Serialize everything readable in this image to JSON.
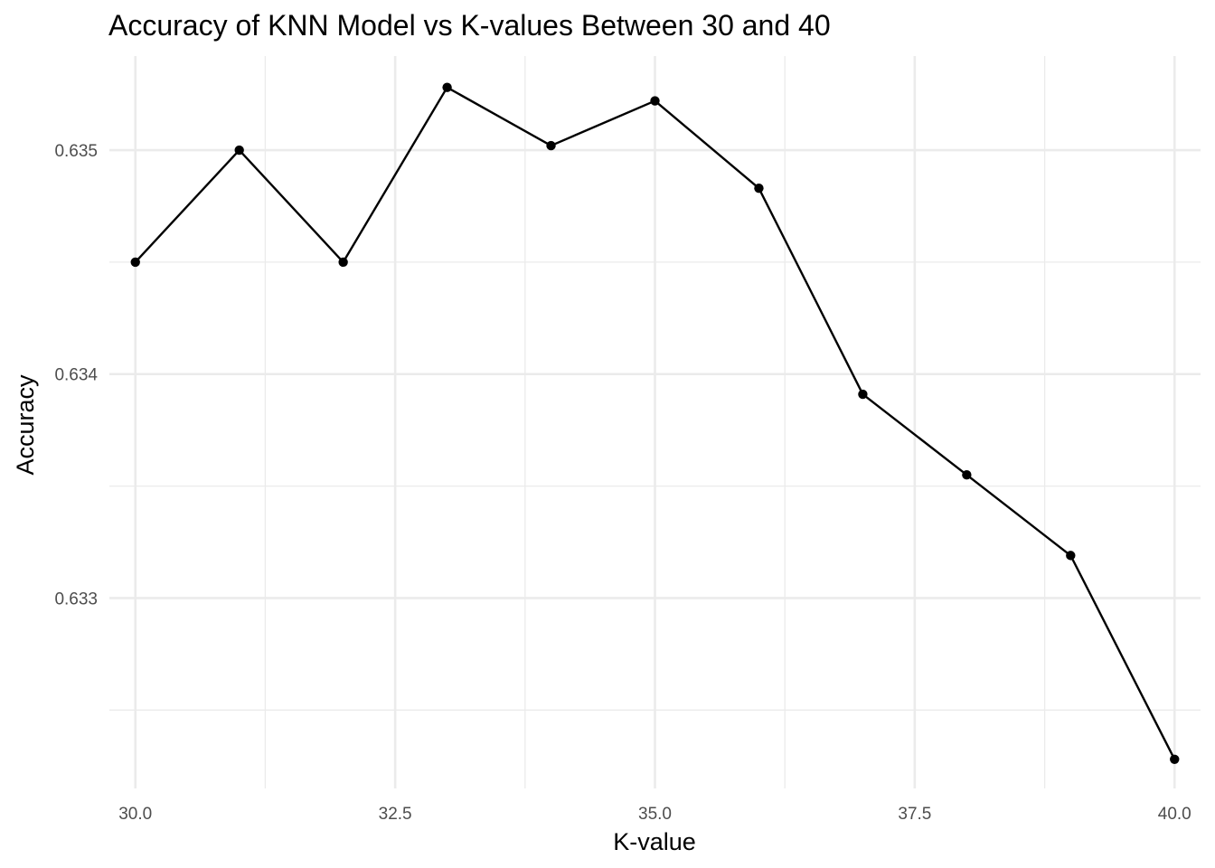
{
  "chart_data": {
    "type": "line",
    "title": "Accuracy of KNN Model vs K-values Between 30 and 40",
    "xlabel": "K-value",
    "ylabel": "Accuracy",
    "x": [
      30,
      31,
      32,
      33,
      34,
      35,
      36,
      37,
      38,
      39,
      40
    ],
    "series": [
      {
        "values": [
          0.6345,
          0.635,
          0.6345,
          0.63528,
          0.63502,
          0.63522,
          0.63483,
          0.63391,
          0.63355,
          0.63319,
          0.63228
        ],
        "color": "#000000"
      }
    ],
    "xlim": [
      29.75,
      40.25
    ],
    "ylim": [
      0.63215,
      0.63542
    ],
    "x_ticks": [
      30.0,
      32.5,
      35.0,
      37.5,
      40.0
    ],
    "x_tick_labels": [
      "30.0",
      "32.5",
      "35.0",
      "37.5",
      "40.0"
    ],
    "y_ticks": [
      0.633,
      0.634,
      0.635
    ],
    "y_tick_labels": [
      "0.633",
      "0.634",
      "0.635"
    ],
    "grid": true,
    "legend": "none",
    "theme": "minimal"
  }
}
